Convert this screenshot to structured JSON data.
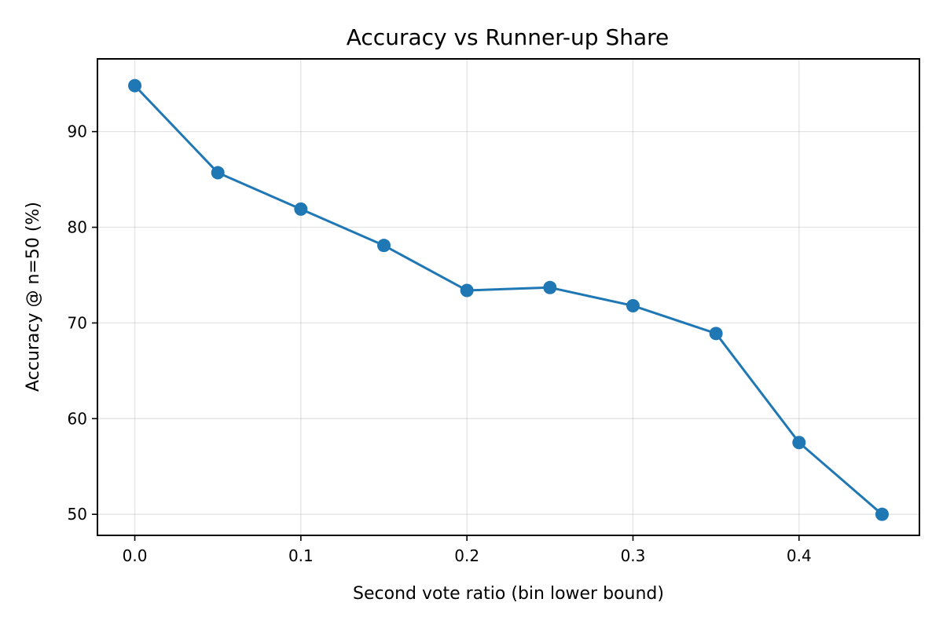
{
  "chart_data": {
    "type": "line",
    "title": "Accuracy vs Runner-up Share",
    "xlabel": "Second vote ratio (bin lower bound)",
    "ylabel": "Accuracy @ n=50 (%)",
    "x": [
      0.0,
      0.05,
      0.1,
      0.15,
      0.2,
      0.25,
      0.3,
      0.35,
      0.4,
      0.45
    ],
    "series": [
      {
        "values": [
          94.8,
          85.7,
          81.9,
          78.1,
          73.4,
          73.7,
          71.8,
          68.9,
          57.5,
          50.0
        ],
        "color": "#1f77b4",
        "marker": "circle"
      }
    ],
    "xlim": [
      -0.0225,
      0.4725
    ],
    "ylim": [
      47.8,
      97.6
    ],
    "xticks": [
      0.0,
      0.1,
      0.2,
      0.3,
      0.4
    ],
    "xtick_labels": [
      "0.0",
      "0.1",
      "0.2",
      "0.3",
      "0.4"
    ],
    "yticks": [
      50,
      60,
      70,
      80,
      90
    ],
    "ytick_labels": [
      "50",
      "60",
      "70",
      "80",
      "90"
    ],
    "grid": true,
    "legend": "none"
  }
}
